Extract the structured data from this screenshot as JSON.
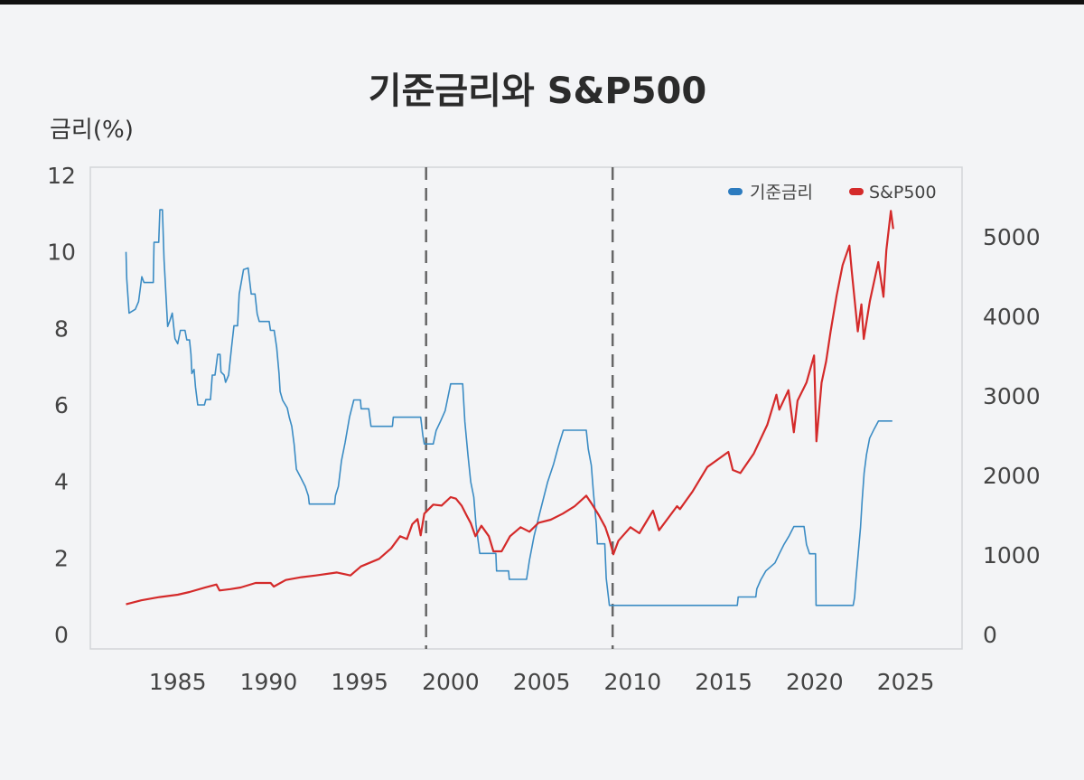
{
  "chart_data": {
    "type": "line",
    "title": "기준금리와 S&P500",
    "ylabel": "금리(%)",
    "y2label": "",
    "xlabel": "",
    "xlim": [
      1980.2,
      2028.1
    ],
    "ylim": [
      0,
      12.4
    ],
    "y2lim": [
      0,
      5990
    ],
    "x_ticks": [
      "1985",
      "1990",
      "1995",
      "2000",
      "2005",
      "2010",
      "2015",
      "2020",
      "2025"
    ],
    "y_ticks": [
      "0",
      "2",
      "4",
      "6",
      "8",
      "10",
      "12"
    ],
    "y2_ticks": [
      "0",
      "1000",
      "2000",
      "3000",
      "4000",
      "5000"
    ],
    "grid": false,
    "legend_position": "top-right",
    "vertical_dashed_lines": [
      1998.65,
      2008.9
    ],
    "colors": {
      "rate": "#3b8cc4",
      "sp500": "#d42a2a",
      "dashed": "#666666",
      "background": "#f3f4f6"
    },
    "series": [
      {
        "name": "기준금리",
        "axis": "left",
        "step": true,
        "points": [
          [
            1982.16,
            10.0
          ],
          [
            1982.2,
            9.3
          ],
          [
            1982.33,
            8.4
          ],
          [
            1982.67,
            8.5
          ],
          [
            1982.85,
            8.7
          ],
          [
            1983.03,
            9.35
          ],
          [
            1983.15,
            9.2
          ],
          [
            1983.66,
            9.2
          ],
          [
            1983.7,
            10.25
          ],
          [
            1983.96,
            10.25
          ],
          [
            1984.02,
            11.1
          ],
          [
            1984.16,
            11.1
          ],
          [
            1984.25,
            9.8
          ],
          [
            1984.45,
            8.05
          ],
          [
            1984.57,
            8.2
          ],
          [
            1984.7,
            8.4
          ],
          [
            1984.85,
            7.73
          ],
          [
            1985.0,
            7.6
          ],
          [
            1985.15,
            7.95
          ],
          [
            1985.4,
            7.95
          ],
          [
            1985.5,
            7.7
          ],
          [
            1985.65,
            7.7
          ],
          [
            1985.73,
            7.32
          ],
          [
            1985.78,
            6.82
          ],
          [
            1985.9,
            6.93
          ],
          [
            1985.98,
            6.47
          ],
          [
            1986.1,
            6.0
          ],
          [
            1986.47,
            6.0
          ],
          [
            1986.55,
            6.14
          ],
          [
            1986.8,
            6.14
          ],
          [
            1986.9,
            6.78
          ],
          [
            1987.05,
            6.78
          ],
          [
            1987.2,
            7.32
          ],
          [
            1987.33,
            7.32
          ],
          [
            1987.38,
            6.86
          ],
          [
            1987.55,
            6.78
          ],
          [
            1987.63,
            6.59
          ],
          [
            1987.8,
            6.78
          ],
          [
            1987.96,
            7.5
          ],
          [
            1988.09,
            8.07
          ],
          [
            1988.29,
            8.07
          ],
          [
            1988.38,
            8.9
          ],
          [
            1988.62,
            9.54
          ],
          [
            1988.87,
            9.58
          ],
          [
            1989.04,
            8.9
          ],
          [
            1989.25,
            8.9
          ],
          [
            1989.37,
            8.38
          ],
          [
            1989.48,
            8.18
          ],
          [
            1990.03,
            8.18
          ],
          [
            1990.1,
            7.95
          ],
          [
            1990.3,
            7.95
          ],
          [
            1990.44,
            7.5
          ],
          [
            1990.57,
            6.82
          ],
          [
            1990.63,
            6.35
          ],
          [
            1990.77,
            6.12
          ],
          [
            1991.02,
            5.92
          ],
          [
            1991.13,
            5.68
          ],
          [
            1991.27,
            5.44
          ],
          [
            1991.4,
            4.97
          ],
          [
            1991.52,
            4.32
          ],
          [
            1991.76,
            4.1
          ],
          [
            1992.01,
            3.87
          ],
          [
            1992.18,
            3.62
          ],
          [
            1992.23,
            3.41
          ],
          [
            1993.62,
            3.41
          ],
          [
            1993.67,
            3.63
          ],
          [
            1993.83,
            3.87
          ],
          [
            1994.0,
            4.54
          ],
          [
            1994.2,
            5.01
          ],
          [
            1994.44,
            5.68
          ],
          [
            1994.68,
            6.13
          ],
          [
            1995.04,
            6.13
          ],
          [
            1995.08,
            5.9
          ],
          [
            1995.5,
            5.9
          ],
          [
            1995.62,
            5.44
          ],
          [
            1996.8,
            5.44
          ],
          [
            1996.85,
            5.68
          ],
          [
            1998.35,
            5.68
          ],
          [
            1998.47,
            5.2
          ],
          [
            1998.55,
            4.98
          ],
          [
            1999.04,
            4.98
          ],
          [
            1999.2,
            5.33
          ],
          [
            1999.45,
            5.58
          ],
          [
            1999.7,
            5.85
          ],
          [
            2000.0,
            6.55
          ],
          [
            2000.66,
            6.55
          ],
          [
            2000.78,
            5.56
          ],
          [
            2000.95,
            4.7
          ],
          [
            2001.1,
            3.99
          ],
          [
            2001.27,
            3.59
          ],
          [
            2001.39,
            2.88
          ],
          [
            2001.52,
            2.41
          ],
          [
            2001.6,
            2.12
          ],
          [
            2002.48,
            2.12
          ],
          [
            2002.52,
            1.66
          ],
          [
            2003.18,
            1.66
          ],
          [
            2003.22,
            1.44
          ],
          [
            2004.17,
            1.44
          ],
          [
            2004.33,
            1.94
          ],
          [
            2004.58,
            2.57
          ],
          [
            2004.91,
            3.2
          ],
          [
            2005.33,
            3.99
          ],
          [
            2005.66,
            4.46
          ],
          [
            2005.9,
            4.89
          ],
          [
            2006.19,
            5.34
          ],
          [
            2007.45,
            5.34
          ],
          [
            2007.56,
            4.85
          ],
          [
            2007.73,
            4.42
          ],
          [
            2007.84,
            3.75
          ],
          [
            2008.0,
            2.88
          ],
          [
            2008.06,
            2.37
          ],
          [
            2008.47,
            2.37
          ],
          [
            2008.55,
            1.47
          ],
          [
            2008.72,
            0.76
          ],
          [
            2015.75,
            0.76
          ],
          [
            2015.8,
            0.98
          ],
          [
            2016.77,
            0.98
          ],
          [
            2016.82,
            1.19
          ],
          [
            2017.04,
            1.43
          ],
          [
            2017.32,
            1.66
          ],
          [
            2017.82,
            1.87
          ],
          [
            2018.06,
            2.11
          ],
          [
            2018.31,
            2.35
          ],
          [
            2018.6,
            2.58
          ],
          [
            2018.86,
            2.82
          ],
          [
            2019.42,
            2.82
          ],
          [
            2019.55,
            2.35
          ],
          [
            2019.72,
            2.11
          ],
          [
            2020.05,
            2.11
          ],
          [
            2020.08,
            0.76
          ],
          [
            2022.12,
            0.76
          ],
          [
            2022.2,
            0.98
          ],
          [
            2022.27,
            1.43
          ],
          [
            2022.39,
            2.1
          ],
          [
            2022.52,
            2.8
          ],
          [
            2022.61,
            3.5
          ],
          [
            2022.72,
            4.22
          ],
          [
            2022.85,
            4.7
          ],
          [
            2023.02,
            5.13
          ],
          [
            2023.27,
            5.37
          ],
          [
            2023.51,
            5.58
          ],
          [
            2024.27,
            5.58
          ]
        ]
      },
      {
        "name": "S&P500",
        "axis": "right",
        "step": false,
        "points": [
          [
            1982.16,
            380
          ],
          [
            1983.0,
            430
          ],
          [
            1984.0,
            470
          ],
          [
            1985.0,
            500
          ],
          [
            1985.65,
            534
          ],
          [
            1986.5,
            590
          ],
          [
            1987.13,
            628
          ],
          [
            1987.3,
            553
          ],
          [
            1987.9,
            570
          ],
          [
            1988.46,
            591
          ],
          [
            1989.28,
            648
          ],
          [
            1990.11,
            648
          ],
          [
            1990.28,
            602
          ],
          [
            1990.94,
            685
          ],
          [
            1991.8,
            720
          ],
          [
            1992.59,
            742
          ],
          [
            1993.75,
            780
          ],
          [
            1994.49,
            742
          ],
          [
            1995.07,
            856
          ],
          [
            1996.07,
            951
          ],
          [
            1996.73,
            1083
          ],
          [
            1997.22,
            1235
          ],
          [
            1997.6,
            1200
          ],
          [
            1997.89,
            1386
          ],
          [
            1998.18,
            1451
          ],
          [
            1998.35,
            1247
          ],
          [
            1998.55,
            1519
          ],
          [
            1999.04,
            1633
          ],
          [
            1999.5,
            1620
          ],
          [
            2000.0,
            1727
          ],
          [
            2000.29,
            1708
          ],
          [
            2000.6,
            1620
          ],
          [
            2000.87,
            1500
          ],
          [
            2001.1,
            1400
          ],
          [
            2001.36,
            1235
          ],
          [
            2001.69,
            1367
          ],
          [
            2002.1,
            1235
          ],
          [
            2002.35,
            1045
          ],
          [
            2002.8,
            1045
          ],
          [
            2003.26,
            1235
          ],
          [
            2003.84,
            1349
          ],
          [
            2004.33,
            1292
          ],
          [
            2004.83,
            1405
          ],
          [
            2005.5,
            1443
          ],
          [
            2006.16,
            1519
          ],
          [
            2006.82,
            1614
          ],
          [
            2007.45,
            1746
          ],
          [
            2007.73,
            1651
          ],
          [
            2008.14,
            1500
          ],
          [
            2008.5,
            1349
          ],
          [
            2008.72,
            1197
          ],
          [
            2008.94,
            1008
          ],
          [
            2009.22,
            1178
          ],
          [
            2009.88,
            1349
          ],
          [
            2010.37,
            1273
          ],
          [
            2011.12,
            1557
          ],
          [
            2011.45,
            1310
          ],
          [
            2012.44,
            1614
          ],
          [
            2012.6,
            1576
          ],
          [
            2013.3,
            1800
          ],
          [
            2014.1,
            2106
          ],
          [
            2015.26,
            2295
          ],
          [
            2015.5,
            2068
          ],
          [
            2015.92,
            2030
          ],
          [
            2016.66,
            2276
          ],
          [
            2017.4,
            2636
          ],
          [
            2017.9,
            3015
          ],
          [
            2018.06,
            2826
          ],
          [
            2018.56,
            3072
          ],
          [
            2018.86,
            2542
          ],
          [
            2019.06,
            2940
          ],
          [
            2019.55,
            3167
          ],
          [
            2019.97,
            3508
          ],
          [
            2020.1,
            2428
          ],
          [
            2020.38,
            3167
          ],
          [
            2020.63,
            3432
          ],
          [
            2020.88,
            3810
          ],
          [
            2021.21,
            4265
          ],
          [
            2021.54,
            4644
          ],
          [
            2021.91,
            4890
          ],
          [
            2022.04,
            4568
          ],
          [
            2022.37,
            3810
          ],
          [
            2022.57,
            4151
          ],
          [
            2022.7,
            3716
          ],
          [
            2023.03,
            4189
          ],
          [
            2023.5,
            4682
          ],
          [
            2023.78,
            4246
          ],
          [
            2023.94,
            4833
          ],
          [
            2024.19,
            5326
          ],
          [
            2024.32,
            5099
          ]
        ]
      }
    ]
  }
}
